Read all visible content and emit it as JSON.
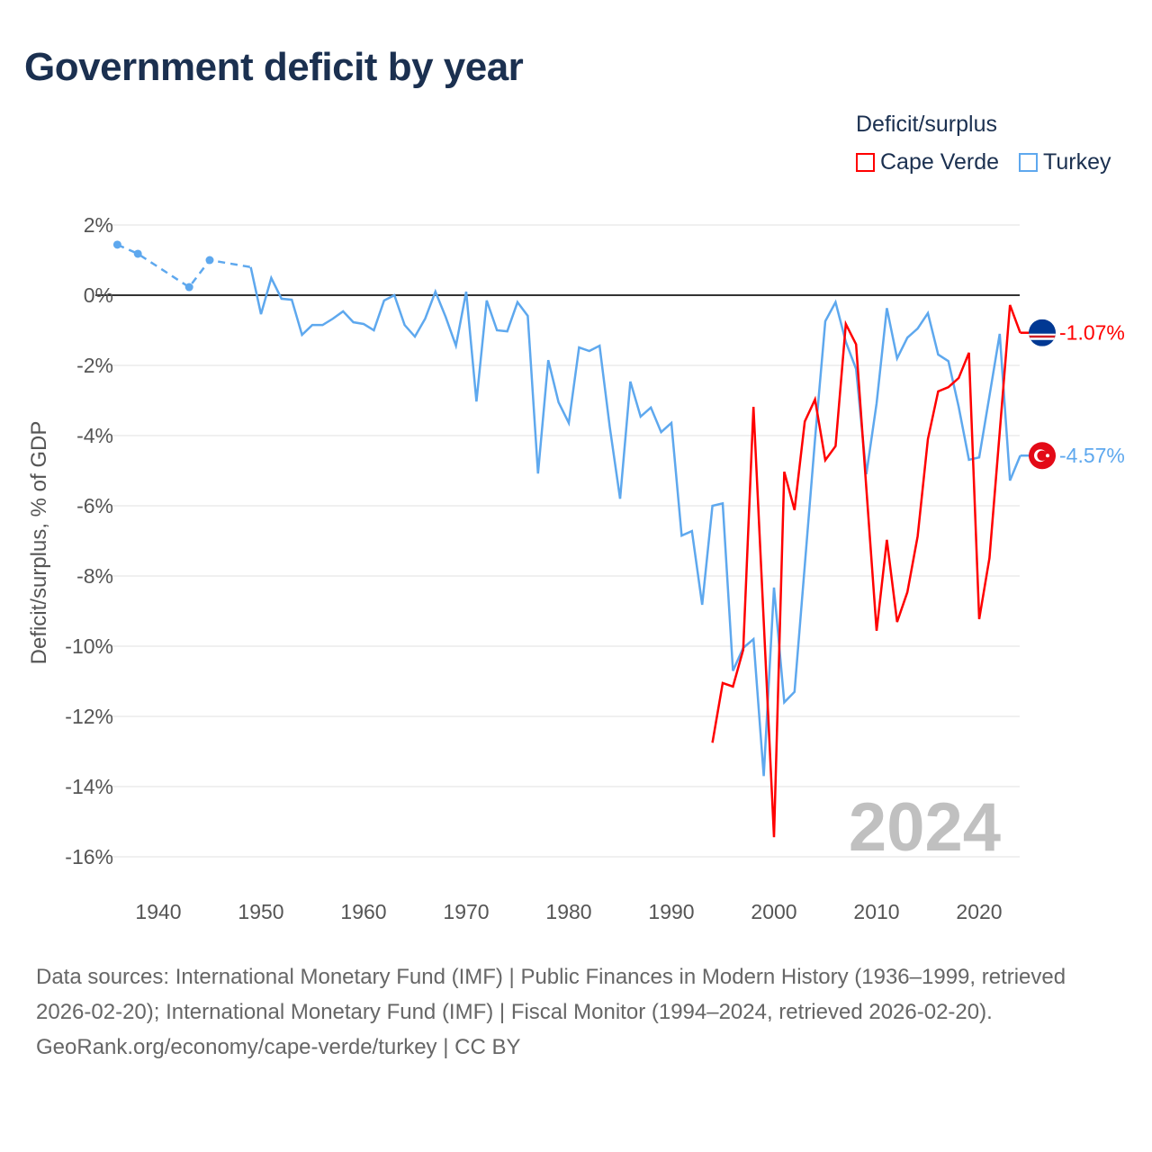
{
  "chart_data": {
    "type": "line",
    "title": "Government deficit by year",
    "xlabel": "",
    "ylabel": "Deficit/surplus, % of GDP",
    "xlim": [
      1936,
      2024
    ],
    "ylim": [
      -16,
      2
    ],
    "y_ticks": [
      2,
      0,
      -2,
      -4,
      -6,
      -8,
      -10,
      -12,
      -14,
      -16
    ],
    "y_tick_labels": [
      "2%",
      "0%",
      "-2%",
      "-4%",
      "-6%",
      "-8%",
      "-10%",
      "-12%",
      "-14%",
      "-16%"
    ],
    "x_ticks": [
      1940,
      1950,
      1960,
      1970,
      1980,
      1990,
      2000,
      2010,
      2020
    ],
    "x_tick_labels": [
      "1940",
      "1950",
      "1960",
      "1970",
      "1980",
      "1990",
      "2000",
      "2010",
      "2020"
    ],
    "grid": true,
    "legend_title": "Deficit/surplus",
    "legend_position": "top-right",
    "year_watermark": "2024",
    "series": [
      {
        "name": "Cape Verde",
        "color": "#ff0000",
        "end_label": "-1.07%",
        "flag": "cape-verde",
        "x": [
          1994,
          1995,
          1996,
          1997,
          1998,
          1999,
          2000,
          2001,
          2002,
          2003,
          2004,
          2005,
          2006,
          2007,
          2008,
          2009,
          2010,
          2011,
          2012,
          2013,
          2014,
          2015,
          2016,
          2017,
          2018,
          2019,
          2020,
          2021,
          2022,
          2023,
          2024
        ],
        "values": [
          -12.75,
          -11.05,
          -11.15,
          -10.1,
          -3.18,
          -9.3,
          -15.44,
          -5.03,
          -6.12,
          -3.6,
          -2.97,
          -4.7,
          -4.3,
          -0.82,
          -1.4,
          -5.5,
          -9.56,
          -6.97,
          -9.31,
          -8.46,
          -6.87,
          -4.1,
          -2.74,
          -2.62,
          -2.36,
          -1.64,
          -9.23,
          -7.49,
          -3.9,
          -0.28,
          -1.07
        ]
      },
      {
        "name": "Turkey",
        "color": "#5ea8ee",
        "end_label": "-4.57%",
        "flag": "turkey",
        "sparse_x": [
          1936,
          1938,
          1943,
          1945,
          1949
        ],
        "sparse_values": [
          1.44,
          1.18,
          0.23,
          1.0,
          0.8
        ],
        "x": [
          1949,
          1950,
          1951,
          1952,
          1953,
          1954,
          1955,
          1956,
          1957,
          1958,
          1959,
          1960,
          1961,
          1962,
          1963,
          1964,
          1965,
          1966,
          1967,
          1968,
          1969,
          1970,
          1971,
          1972,
          1973,
          1974,
          1975,
          1976,
          1977,
          1978,
          1979,
          1980,
          1981,
          1982,
          1983,
          1984,
          1985,
          1986,
          1987,
          1988,
          1989,
          1990,
          1991,
          1992,
          1993,
          1994,
          1995,
          1996,
          1997,
          1998,
          1999,
          2000,
          2001,
          2002,
          2003,
          2004,
          2005,
          2006,
          2007,
          2008,
          2009,
          2010,
          2011,
          2012,
          2013,
          2014,
          2015,
          2016,
          2017,
          2018,
          2019,
          2020,
          2021,
          2022,
          2023,
          2024
        ],
        "values": [
          0.8,
          -0.54,
          0.49,
          -0.1,
          -0.13,
          -1.13,
          -0.85,
          -0.85,
          -0.67,
          -0.46,
          -0.77,
          -0.82,
          -1.0,
          -0.15,
          0.0,
          -0.85,
          -1.18,
          -0.67,
          0.1,
          -0.62,
          -1.44,
          0.1,
          -3.03,
          -0.15,
          -1.0,
          -1.03,
          -0.2,
          -0.59,
          -5.08,
          -1.85,
          -3.05,
          -3.64,
          -1.49,
          -1.59,
          -1.44,
          -3.77,
          -5.8,
          -2.46,
          -3.46,
          -3.2,
          -3.9,
          -3.64,
          -6.85,
          -6.72,
          -8.82,
          -6.0,
          -5.93,
          -10.7,
          -10.05,
          -9.8,
          -13.7,
          -8.33,
          -11.6,
          -11.3,
          -7.7,
          -4.1,
          -0.74,
          -0.2,
          -1.33,
          -2.1,
          -5.1,
          -3.08,
          -0.37,
          -1.8,
          -1.21,
          -0.95,
          -0.51,
          -1.69,
          -1.88,
          -3.18,
          -4.69,
          -4.62,
          -2.87,
          -1.1,
          -5.28,
          -4.57
        ]
      }
    ]
  },
  "footer": {
    "sources": "Data sources: International Monetary Fund (IMF) | Public Finances in Modern History (1936–1999, retrieved 2026-02-20); International Monetary Fund (IMF) | Fiscal Monitor (1994–2024, retrieved 2026-02-20).",
    "credit": "GeoRank.org/economy/cape-verde/turkey | CC BY"
  }
}
